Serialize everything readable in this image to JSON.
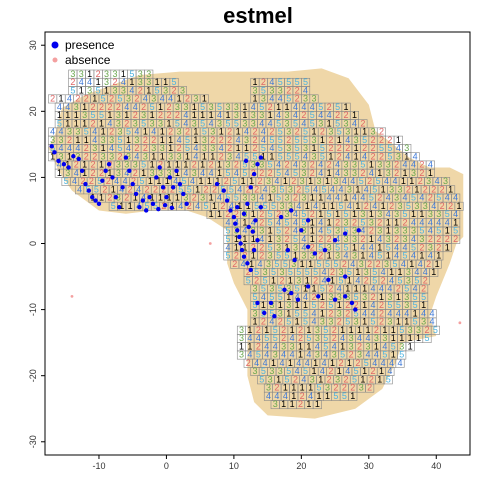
{
  "chart_data": {
    "type": "scatter",
    "title": "estmel",
    "xlabel": "",
    "ylabel": "",
    "xlim": [
      -18,
      45
    ],
    "ylim": [
      -32,
      32
    ],
    "xticks": [
      -10,
      0,
      10,
      20,
      30,
      40
    ],
    "yticks": [
      -30,
      -20,
      -10,
      0,
      10,
      20,
      30
    ],
    "grid": false,
    "legend_position": "top-left",
    "legend": [
      {
        "label": "presence",
        "color": "#0000ee",
        "marker": "filled-circle"
      },
      {
        "label": "absence",
        "color": "#f4a0a0",
        "marker": "filled-circle"
      }
    ],
    "cell_size": 1.25,
    "cell_colors": {
      "1": "#000000",
      "2": "#e06666",
      "3": "#6aa84f",
      "4": "#3c78d8",
      "5": "#4fb3e0"
    },
    "land_color": "#efd7a8",
    "land_polygon": [
      [
        -17.5,
        14.5
      ],
      [
        -16.5,
        16.5
      ],
      [
        -15.5,
        20.5
      ],
      [
        -12,
        22.5
      ],
      [
        -8,
        24
      ],
      [
        -4,
        25.5
      ],
      [
        2,
        26
      ],
      [
        10,
        26
      ],
      [
        18,
        26
      ],
      [
        23,
        26.5
      ],
      [
        27,
        25
      ],
      [
        30,
        21
      ],
      [
        31,
        17
      ],
      [
        33,
        15.5
      ],
      [
        36,
        13
      ],
      [
        39,
        11.5
      ],
      [
        42,
        11.5
      ],
      [
        44,
        10.5
      ],
      [
        44,
        6
      ],
      [
        44,
        1
      ],
      [
        43,
        0
      ],
      [
        42,
        -3
      ],
      [
        40,
        -8
      ],
      [
        39,
        -11
      ],
      [
        40,
        -14
      ],
      [
        35,
        -15
      ],
      [
        34,
        -18
      ],
      [
        32,
        -22
      ],
      [
        28,
        -25
      ],
      [
        22,
        -26.5
      ],
      [
        15,
        -26
      ],
      [
        13,
        -24
      ],
      [
        12,
        -20
      ],
      [
        12,
        -15
      ],
      [
        12,
        -10
      ],
      [
        10,
        -6
      ],
      [
        9,
        -3
      ],
      [
        9,
        2
      ],
      [
        6,
        4
      ],
      [
        3,
        5
      ],
      [
        -2,
        5
      ],
      [
        -6,
        4.5
      ],
      [
        -10,
        5
      ],
      [
        -14,
        8
      ],
      [
        -16,
        11
      ]
    ],
    "cell_blocks": [
      {
        "y": 25,
        "x_start": -14.5,
        "x_end": -2
      },
      {
        "y": 23.75,
        "x_start": -14.5,
        "x_end": 2
      },
      {
        "y": 22.5,
        "x_start": -14.5,
        "x_end": 3
      },
      {
        "y": 21.25,
        "x_start": -17.5,
        "x_end": 6
      },
      {
        "y": 21.25,
        "x_start": 12.5,
        "x_end": 22
      },
      {
        "y": 22.5,
        "x_start": 12.5,
        "x_end": 21
      },
      {
        "y": 23.75,
        "x_start": 12.5,
        "x_end": 21
      },
      {
        "y": 20,
        "x_start": -16.5,
        "x_end": 27
      },
      {
        "y": 18.75,
        "x_start": -16.5,
        "x_end": 28
      },
      {
        "y": 17.5,
        "x_start": -16.5,
        "x_end": 30
      },
      {
        "y": 16.25,
        "x_start": -17.5,
        "x_end": 32
      },
      {
        "y": 15,
        "x_start": -17.5,
        "x_end": 35
      },
      {
        "y": 13.75,
        "x_start": -17.5,
        "x_end": 36
      },
      {
        "y": 12.5,
        "x_start": -17.5,
        "x_end": 38
      },
      {
        "y": 11.25,
        "x_start": -16.5,
        "x_end": 40
      },
      {
        "y": 10,
        "x_start": -16.5,
        "x_end": 40
      },
      {
        "y": 8.75,
        "x_start": -15.5,
        "x_end": 42
      },
      {
        "y": 7.5,
        "x_start": -13.5,
        "x_end": 43
      },
      {
        "y": 6.25,
        "x_start": -11.5,
        "x_end": 44
      },
      {
        "y": 5,
        "x_start": -8.5,
        "x_end": 44
      },
      {
        "y": 3.75,
        "x_start": 6,
        "x_end": 44
      },
      {
        "y": 2.5,
        "x_start": 8.5,
        "x_end": 44
      },
      {
        "y": 1.25,
        "x_start": 8.5,
        "x_end": 43
      },
      {
        "y": 0,
        "x_start": 8.5,
        "x_end": 43
      },
      {
        "y": -1.25,
        "x_start": 8.5,
        "x_end": 42
      },
      {
        "y": -2.5,
        "x_start": 8.5,
        "x_end": 41
      },
      {
        "y": -3.75,
        "x_start": 9.5,
        "x_end": 41
      },
      {
        "y": -5,
        "x_start": 11.5,
        "x_end": 40
      },
      {
        "y": -6.25,
        "x_start": 11.5,
        "x_end": 39
      },
      {
        "y": -7.5,
        "x_start": 12.5,
        "x_end": 39
      },
      {
        "y": -8.75,
        "x_start": 12.5,
        "x_end": 39
      },
      {
        "y": -10,
        "x_start": 12.5,
        "x_end": 39
      },
      {
        "y": -11.25,
        "x_start": 12.5,
        "x_end": 40
      },
      {
        "y": -12.5,
        "x_start": 12.5,
        "x_end": 40
      },
      {
        "y": -13.75,
        "x_start": 10.5,
        "x_end": 40
      },
      {
        "y": -15,
        "x_start": 10.5,
        "x_end": 39
      },
      {
        "y": -16.25,
        "x_start": 10.5,
        "x_end": 37
      },
      {
        "y": -17.5,
        "x_start": 10.5,
        "x_end": 36
      },
      {
        "y": -18.75,
        "x_start": 11.5,
        "x_end": 35
      },
      {
        "y": -20,
        "x_start": 12.5,
        "x_end": 34
      },
      {
        "y": -21.25,
        "x_start": 13.5,
        "x_end": 33
      },
      {
        "y": -22.5,
        "x_start": 14.5,
        "x_end": 31
      },
      {
        "y": -23.75,
        "x_start": 14.5,
        "x_end": 28
      },
      {
        "y": -25,
        "x_start": 15.5,
        "x_end": 23
      }
    ],
    "presence_points": [
      [
        -17,
        14.7
      ],
      [
        -16.6,
        13.8
      ],
      [
        -16,
        12.5
      ],
      [
        -15.2,
        12
      ],
      [
        -14.5,
        11.5
      ],
      [
        -13.8,
        13.2
      ],
      [
        -13,
        12.8
      ],
      [
        -12.5,
        11
      ],
      [
        -12,
        9
      ],
      [
        -11.5,
        8
      ],
      [
        -11,
        7
      ],
      [
        -10.5,
        6.5
      ],
      [
        -10,
        6
      ],
      [
        -9.5,
        9.5
      ],
      [
        -9,
        11
      ],
      [
        -8.5,
        12
      ],
      [
        -8,
        10
      ],
      [
        -7.5,
        7
      ],
      [
        -7,
        5.5
      ],
      [
        -6.5,
        8.5
      ],
      [
        -6,
        13
      ],
      [
        -5.5,
        11
      ],
      [
        -5,
        9
      ],
      [
        -4.5,
        7.5
      ],
      [
        -4,
        5.5
      ],
      [
        -3.5,
        6.5
      ],
      [
        -3,
        5
      ],
      [
        -2.5,
        7
      ],
      [
        -2,
        6
      ],
      [
        -1.5,
        10
      ],
      [
        -1,
        11.5
      ],
      [
        -0.5,
        8.5
      ],
      [
        0,
        7
      ],
      [
        0.5,
        10
      ],
      [
        1,
        8.5
      ],
      [
        1.5,
        11
      ],
      [
        2,
        9
      ],
      [
        2.5,
        7.5
      ],
      [
        3,
        6
      ],
      [
        -1.2,
        5.2
      ],
      [
        -0.2,
        5.8
      ],
      [
        0.8,
        5.4
      ],
      [
        7.5,
        9
      ],
      [
        8.5,
        8
      ],
      [
        9,
        6.5
      ],
      [
        9.5,
        5
      ],
      [
        10,
        4
      ],
      [
        10.2,
        3
      ],
      [
        10.5,
        2
      ],
      [
        10.8,
        1
      ],
      [
        11,
        0
      ],
      [
        11.2,
        -1
      ],
      [
        11.5,
        -2
      ],
      [
        12,
        -3
      ],
      [
        12.5,
        -4
      ],
      [
        13,
        -1
      ],
      [
        13.5,
        0.5
      ],
      [
        12,
        6
      ],
      [
        12.5,
        8.5
      ],
      [
        13,
        10.5
      ],
      [
        13.5,
        12
      ],
      [
        14,
        13
      ],
      [
        11.8,
        12.5
      ],
      [
        10.5,
        5.5
      ],
      [
        11.5,
        4.5
      ],
      [
        12.2,
        2.5
      ],
      [
        12.8,
        1.8
      ],
      [
        13.2,
        3.5
      ],
      [
        14,
        5.5
      ],
      [
        18,
        -1
      ],
      [
        19,
        -2.5
      ],
      [
        20,
        2
      ],
      [
        21,
        -0.5
      ],
      [
        22,
        -1.5
      ],
      [
        23.5,
        -1
      ],
      [
        24,
        -5.5
      ],
      [
        25,
        0.5
      ],
      [
        26.5,
        -5
      ],
      [
        17.5,
        -7
      ],
      [
        18.5,
        -7.5
      ],
      [
        19.5,
        -8.5
      ],
      [
        21,
        -6.5
      ],
      [
        22.5,
        -8
      ],
      [
        25,
        -8.5
      ],
      [
        26.5,
        -8
      ],
      [
        27.5,
        -9
      ],
      [
        28,
        -10
      ],
      [
        15.5,
        -9
      ],
      [
        16,
        -11
      ],
      [
        14.5,
        -10.5
      ],
      [
        13.5,
        -9
      ],
      [
        17,
        4
      ],
      [
        18.5,
        5
      ],
      [
        21,
        3.5
      ],
      [
        28.5,
        2
      ],
      [
        26.5,
        1.5
      ]
    ],
    "absence_points": [
      [
        6.5,
        0
      ],
      [
        -14,
        -8
      ],
      [
        43.5,
        -12
      ]
    ]
  }
}
